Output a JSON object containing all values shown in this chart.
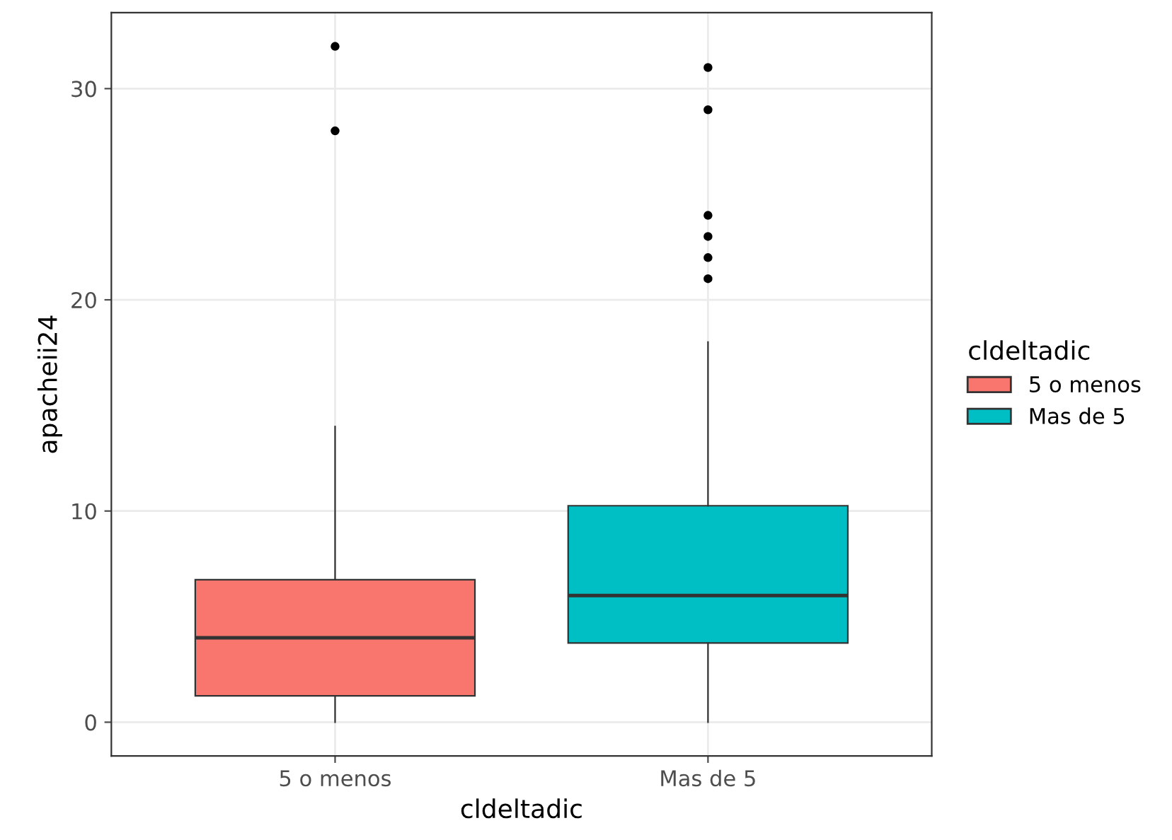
{
  "chart_data": {
    "type": "box",
    "xlabel": "cldeltadic",
    "ylabel": "apacheii24",
    "legend_title": "cldeltadic",
    "categories": [
      "5 o menos",
      "Mas de 5"
    ],
    "series": [
      {
        "name": "5 o menos",
        "color": "#f8766d",
        "boxes": [
          {
            "low": 0,
            "q1": 1.25,
            "median": 4,
            "q3": 6.75,
            "high": 14,
            "outliers": [
              28,
              32
            ]
          },
          null
        ]
      },
      {
        "name": "Mas de 5",
        "color": "#00bfc4",
        "boxes": [
          null,
          {
            "low": 0,
            "q1": 3.75,
            "median": 6,
            "q3": 10.25,
            "high": 18,
            "outliers": [
              21,
              22,
              23,
              24,
              29,
              31
            ]
          }
        ]
      }
    ],
    "ylim": [
      -1.6,
      33.6
    ],
    "yticks": [
      0,
      10,
      20,
      30
    ],
    "grid": true,
    "legend": "right"
  }
}
